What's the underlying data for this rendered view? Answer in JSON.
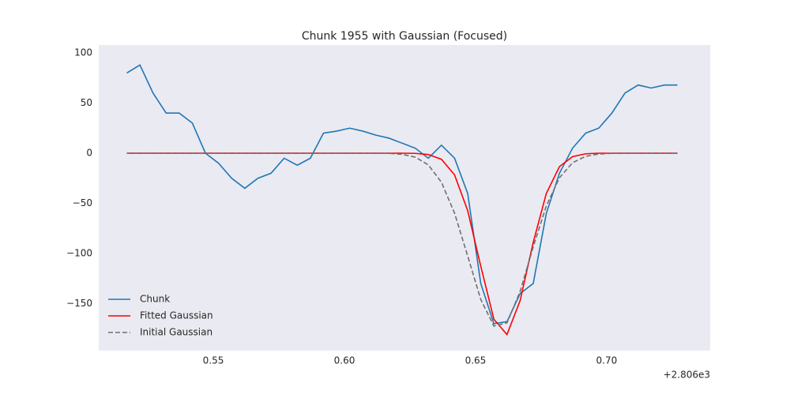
{
  "chart_data": {
    "type": "line",
    "title": "Chunk 1955 with Gaussian (Focused)",
    "x": [
      0.517,
      0.522,
      0.527,
      0.532,
      0.537,
      0.542,
      0.547,
      0.552,
      0.557,
      0.562,
      0.567,
      0.572,
      0.577,
      0.582,
      0.587,
      0.592,
      0.597,
      0.602,
      0.607,
      0.612,
      0.617,
      0.622,
      0.627,
      0.632,
      0.637,
      0.642,
      0.647,
      0.652,
      0.657,
      0.662,
      0.667,
      0.672,
      0.677,
      0.682,
      0.687,
      0.692,
      0.697,
      0.702,
      0.707,
      0.712,
      0.717,
      0.722,
      0.727
    ],
    "series": [
      {
        "name": "Chunk",
        "color": "#1f77b4",
        "linestyle": "solid",
        "values": [
          80,
          88,
          60,
          40,
          40,
          30,
          0,
          -10,
          -25,
          -35,
          -25,
          -20,
          -5,
          -12,
          -5,
          20,
          22,
          25,
          22,
          18,
          15,
          10,
          5,
          -5,
          8,
          -5,
          -40,
          -130,
          -170,
          -168,
          -140,
          -130,
          -60,
          -20,
          5,
          20,
          25,
          40,
          60,
          68,
          65,
          68,
          68
        ]
      },
      {
        "name": "Fitted Gaussian",
        "color": "#ff0000",
        "linestyle": "solid",
        "values": [
          0,
          0,
          0,
          0,
          0,
          0,
          0,
          0,
          0,
          0,
          0,
          0,
          0,
          0,
          0,
          0,
          0,
          0,
          0,
          0,
          0,
          0,
          -0.2,
          -1.3,
          -6.1,
          -21.6,
          -57.2,
          -112.8,
          -165.6,
          -180.9,
          -147.1,
          -89.0,
          -40.1,
          -13.4,
          -3.4,
          -0.6,
          0,
          0,
          0,
          0,
          0,
          0,
          0
        ]
      },
      {
        "name": "Initial Gaussian",
        "color": "#707070",
        "linestyle": "dashed",
        "values": [
          0,
          0,
          0,
          0,
          0,
          0,
          0,
          0,
          0,
          0,
          0,
          0,
          0,
          0,
          0,
          0,
          0,
          0,
          0,
          0,
          -0.2,
          -1.1,
          -3.9,
          -11.7,
          -29.0,
          -59.8,
          -102.5,
          -145.9,
          -172.4,
          -169.2,
          -137.9,
          -93.4,
          -52.5,
          -24.5,
          -9.5,
          -3.1,
          -0.8,
          -0.2,
          0,
          0,
          0,
          0,
          0
        ]
      }
    ],
    "xlim": [
      0.5063,
      0.7395
    ],
    "xticks": [
      0.55,
      {
        "value": 0.6,
        "label": "0.60"
      },
      0.65,
      {
        "value": 0.7,
        "label": "0.70"
      }
    ],
    "x_offset_label": "+2.806e3",
    "ylim": [
      -196.9,
      107.9
    ],
    "yticks": [
      {
        "value": -150,
        "label": "−150"
      },
      {
        "value": -100,
        "label": "−100"
      },
      {
        "value": -50,
        "label": "−50"
      },
      0,
      50,
      100
    ],
    "grid": false,
    "legend_position": "lower left"
  }
}
